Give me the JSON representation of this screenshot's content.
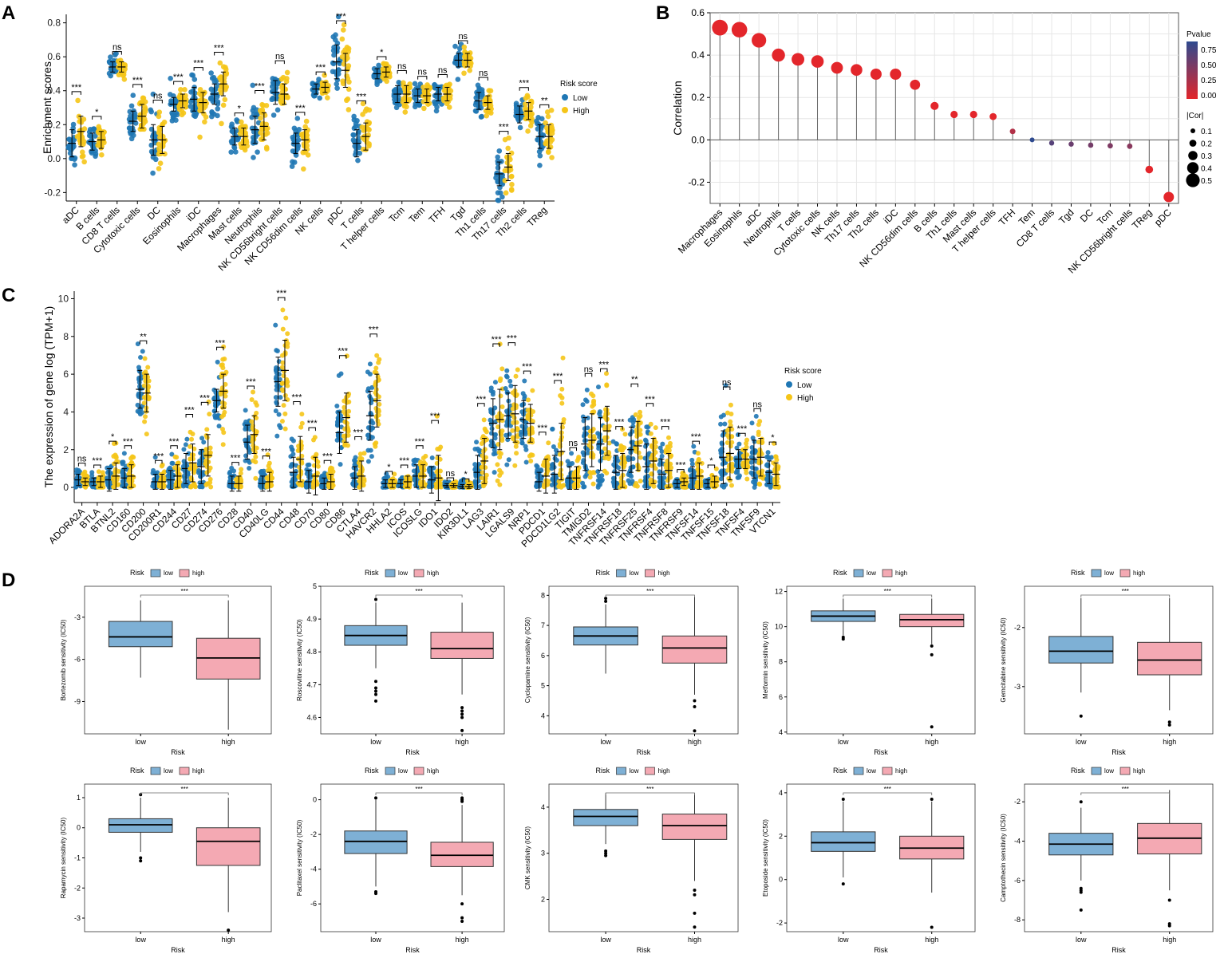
{
  "colors": {
    "low": "#1F77B4",
    "high": "#F5C518",
    "box_low": "#7EB0D5",
    "box_high": "#F4A9B3",
    "grid": "#E6E6E6",
    "corr_high": "#E3262B",
    "corr_low": "#2E4A8F"
  },
  "chart_data": [
    {
      "panel": "A",
      "type": "scatter",
      "title": "",
      "ylabel": "Enrichment scores",
      "ylim": [
        -0.25,
        0.85
      ],
      "yticks": [
        -0.2,
        0.0,
        0.2,
        0.4,
        0.6,
        0.8
      ],
      "legend": {
        "title": "Risk score",
        "labels": [
          "Low",
          "High"
        ],
        "placement": "right"
      },
      "categories": [
        "aDC",
        "B cells",
        "CD8 T cells",
        "Cytotoxic cells",
        "DC",
        "Eosinophils",
        "iDC",
        "Macrophages",
        "Mast cells",
        "Neutrophils",
        "NK CD56bright cells",
        "NK CD56dim cells",
        "NK cells",
        "pDC",
        "T cells",
        "T helper cells",
        "Tcm",
        "Tem",
        "TFH",
        "Tgd",
        "Th1 cells",
        "Th17 cells",
        "Th2 cells",
        "TReg"
      ],
      "series": [
        {
          "name": "Low",
          "mean": [
            0.09,
            0.1,
            0.54,
            0.22,
            0.11,
            0.32,
            0.35,
            0.38,
            0.13,
            0.17,
            0.39,
            0.09,
            0.41,
            0.57,
            0.09,
            0.5,
            0.38,
            0.37,
            0.38,
            0.58,
            0.34,
            -0.09,
            0.26,
            0.13
          ],
          "sd": [
            0.08,
            0.05,
            0.03,
            0.06,
            0.09,
            0.04,
            0.07,
            0.06,
            0.05,
            0.08,
            0.07,
            0.06,
            0.03,
            0.1,
            0.08,
            0.03,
            0.05,
            0.04,
            0.04,
            0.04,
            0.05,
            0.07,
            0.05,
            0.07
          ]
        },
        {
          "name": "High",
          "mean": [
            0.16,
            0.11,
            0.54,
            0.25,
            0.11,
            0.34,
            0.33,
            0.44,
            0.13,
            0.19,
            0.38,
            0.11,
            0.42,
            0.52,
            0.13,
            0.51,
            0.38,
            0.37,
            0.38,
            0.58,
            0.33,
            -0.05,
            0.28,
            0.13
          ],
          "sd": [
            0.09,
            0.05,
            0.03,
            0.07,
            0.08,
            0.04,
            0.06,
            0.07,
            0.05,
            0.08,
            0.06,
            0.06,
            0.03,
            0.1,
            0.08,
            0.03,
            0.05,
            0.04,
            0.04,
            0.04,
            0.04,
            0.08,
            0.05,
            0.07
          ]
        }
      ],
      "significance": [
        "***",
        "*",
        "ns",
        "***",
        "ns",
        "***",
        "***",
        "***",
        "*",
        "***",
        "ns",
        "***",
        "***",
        "***",
        "***",
        "*",
        "ns",
        "ns",
        "ns",
        "ns",
        "ns",
        "***",
        "***",
        "**"
      ]
    },
    {
      "panel": "B",
      "type": "scatter",
      "title": "",
      "ylabel": "Correlation",
      "ylim": [
        -0.3,
        0.6
      ],
      "yticks": [
        -0.2,
        0.0,
        0.2,
        0.4,
        0.6
      ],
      "x": [
        "Macrophages",
        "Eosinophils",
        "aDC",
        "Neutrophils",
        "T cells",
        "Cytotoxic cells",
        "NK cells",
        "Th17 cells",
        "Th2 cells",
        "iDC",
        "NK CD56dim cells",
        "B cells",
        "Th1 cells",
        "Mast cells",
        "T helper cells",
        "TFH",
        "Tem",
        "CD8 T cells",
        "Tgd",
        "DC",
        "Tcm",
        "NK CD56bright cells",
        "TReg",
        "pDC"
      ],
      "y": [
        0.53,
        0.52,
        0.47,
        0.4,
        0.38,
        0.37,
        0.34,
        0.33,
        0.31,
        0.31,
        0.26,
        0.16,
        0.12,
        0.12,
        0.11,
        0.04,
        0.0,
        -0.015,
        -0.02,
        -0.025,
        -0.028,
        -0.03,
        -0.14,
        -0.27
      ],
      "pvalue": [
        0.0,
        0.0,
        0.0,
        0.0,
        0.0,
        0.0,
        0.0,
        0.0,
        0.0,
        0.0,
        0.0,
        0.0,
        0.001,
        0.001,
        0.002,
        0.25,
        0.95,
        0.7,
        0.6,
        0.55,
        0.5,
        0.45,
        0.0,
        0.0
      ],
      "legend_pvalue": {
        "title": "Pvalue",
        "ticks": [
          "0.75",
          "0.50",
          "0.25",
          "0.00"
        ]
      },
      "legend_size": {
        "title": "|Cor|",
        "ticks": [
          "0.1",
          "0.2",
          "0.3",
          "0.4",
          "0.5"
        ]
      }
    },
    {
      "panel": "C",
      "type": "scatter",
      "title": "",
      "ylabel": "The expression of gene log (TPM+1)",
      "ylim": [
        -0.8,
        10.4
      ],
      "yticks": [
        0,
        2,
        4,
        6,
        8,
        10
      ],
      "legend": {
        "title": "Risk score",
        "labels": [
          "Low",
          "High"
        ],
        "placement": "right"
      },
      "categories": [
        "ADORA2A",
        "BTLA",
        "BTNL2",
        "CD160",
        "CD200",
        "CD200R1",
        "CD244",
        "CD27",
        "CD274",
        "CD276",
        "CD28",
        "CD40",
        "CD40LG",
        "CD44",
        "CD48",
        "CD70",
        "CD80",
        "CD86",
        "CTLA4",
        "HAVCR2",
        "HHLA2",
        "ICOS",
        "ICOSLG",
        "IDO1",
        "IDO2",
        "KIR3DL1",
        "LAG3",
        "LAIR1",
        "LGALS9",
        "NRP1",
        "PDCD1",
        "PDCD1LG2",
        "TIGIT",
        "TMIGD2",
        "TNFRSF14",
        "TNFRSF18",
        "TNFRSF25",
        "TNFRSF4",
        "TNFRSF8",
        "TNFRSF9",
        "TNFSF14",
        "TNFSF15",
        "TNFSF18",
        "TNFSF4",
        "TNFSF9",
        "VTCN1"
      ],
      "series": [
        {
          "name": "Low",
          "mean": [
            0.4,
            0.3,
            0.4,
            0.5,
            5.2,
            0.3,
            0.4,
            1.0,
            1.1,
            4.6,
            0.2,
            2.4,
            0.2,
            5.6,
            0.8,
            0.3,
            0.2,
            2.9,
            0.5,
            3.8,
            0.2,
            0.2,
            0.6,
            0.4,
            0.1,
            0.05,
            0.8,
            3.4,
            3.8,
            3.6,
            0.3,
            0.7,
            0.5,
            2.3,
            2.3,
            0.8,
            2.0,
            1.1,
            0.7,
            0.2,
            0.5,
            0.2,
            1.6,
            1.5,
            1.5,
            0.8
          ],
          "sd": [
            0.3,
            0.2,
            0.6,
            0.5,
            1.0,
            0.4,
            0.5,
            0.8,
            0.9,
            0.6,
            0.4,
            0.9,
            0.4,
            1.3,
            0.8,
            0.6,
            0.3,
            1.1,
            0.6,
            1.3,
            0.2,
            0.2,
            0.6,
            0.7,
            0.1,
            0.1,
            0.9,
            1.3,
            1.2,
            1.0,
            0.5,
            1.0,
            0.6,
            1.4,
            1.4,
            0.9,
            1.2,
            1.2,
            0.8,
            0.2,
            0.6,
            0.2,
            1.4,
            0.5,
            1.0,
            0.6
          ]
        },
        {
          "name": "High",
          "mean": [
            0.3,
            0.3,
            0.6,
            0.6,
            5.0,
            0.3,
            0.6,
            1.3,
            1.7,
            5.1,
            0.2,
            2.8,
            0.3,
            6.2,
            1.5,
            0.6,
            0.3,
            3.7,
            0.6,
            4.6,
            0.2,
            0.3,
            0.6,
            0.5,
            0.1,
            0.05,
            1.4,
            3.6,
            3.9,
            3.4,
            0.6,
            1.9,
            0.5,
            2.5,
            3.0,
            0.9,
            2.2,
            1.4,
            0.9,
            0.3,
            0.6,
            0.3,
            1.8,
            1.5,
            1.6,
            0.7
          ],
          "sd": [
            0.2,
            0.3,
            0.7,
            0.6,
            1.0,
            0.4,
            0.6,
            1.0,
            1.1,
            0.9,
            0.4,
            1.0,
            0.5,
            1.6,
            1.2,
            1.0,
            0.4,
            1.3,
            0.8,
            1.4,
            0.2,
            0.3,
            0.6,
            1.2,
            0.1,
            0.1,
            1.2,
            1.6,
            1.5,
            1.0,
            0.9,
            1.5,
            0.6,
            1.4,
            1.3,
            0.9,
            1.3,
            1.2,
            0.9,
            0.2,
            0.7,
            0.3,
            1.4,
            0.5,
            1.0,
            0.6
          ]
        }
      ],
      "significance": [
        "ns",
        "***",
        "*",
        "***",
        "**",
        "***",
        "***",
        "***",
        "***",
        "***",
        "***",
        "***",
        "***",
        "***",
        "***",
        "***",
        "***",
        "***",
        "***",
        "***",
        "*",
        "***",
        "***",
        "***",
        "ns",
        "*",
        "***",
        "***",
        "***",
        "***",
        "***",
        "***",
        "ns",
        "ns",
        "***",
        "***",
        "**",
        "***",
        "***",
        "***",
        "***",
        "*",
        "ns",
        "***",
        "ns",
        "*"
      ]
    },
    {
      "panel": "D",
      "type": "box",
      "xlabel": "Risk",
      "legend": {
        "title": "Risk",
        "labels": [
          "low",
          "high"
        ]
      },
      "categories": [
        "low",
        "high"
      ],
      "significance": "***",
      "plots": [
        {
          "ylabel": "Bortezomib sensitivity (IC50)",
          "ylim": [
            -11.3,
            -0.8
          ],
          "yticks": [
            -9,
            -6,
            -3
          ],
          "low": {
            "min": -7.3,
            "q1": -5.1,
            "median": -4.4,
            "q3": -3.3,
            "max": -1.8,
            "outliers": []
          },
          "high": {
            "min": -11.0,
            "q1": -7.4,
            "median": -5.9,
            "q3": -4.5,
            "max": -1.8,
            "outliers": []
          }
        },
        {
          "ylabel": "Roscovitine sensitivity (IC50)",
          "ylim": [
            4.55,
            5.0
          ],
          "yticks": [
            4.6,
            4.7,
            4.8,
            4.9,
            5.0
          ],
          "low": {
            "min": 4.75,
            "q1": 4.82,
            "median": 4.85,
            "q3": 4.88,
            "max": 4.95,
            "outliers": [
              4.96,
              4.71,
              4.69,
              4.68,
              4.67,
              4.65
            ]
          },
          "high": {
            "min": 4.67,
            "q1": 4.78,
            "median": 4.81,
            "q3": 4.86,
            "max": 4.95,
            "outliers": [
              4.63,
              4.62,
              4.61,
              4.6,
              4.56
            ]
          }
        },
        {
          "ylabel": "Cyclopamine sensitivity (IC50)",
          "ylim": [
            3.4,
            8.3
          ],
          "yticks": [
            4,
            5,
            6,
            7,
            8
          ],
          "low": {
            "min": 5.4,
            "q1": 6.35,
            "median": 6.65,
            "q3": 6.95,
            "max": 7.7,
            "outliers": [
              7.9,
              7.8
            ]
          },
          "high": {
            "min": 4.7,
            "q1": 5.75,
            "median": 6.25,
            "q3": 6.65,
            "max": 7.95,
            "outliers": [
              4.5,
              4.3,
              3.5
            ]
          }
        },
        {
          "ylabel": "Metformin sensitivity (IC50)",
          "ylim": [
            3.9,
            12.3
          ],
          "yticks": [
            4,
            6,
            8,
            10,
            12
          ],
          "low": {
            "min": 9.5,
            "q1": 10.3,
            "median": 10.6,
            "q3": 10.9,
            "max": 11.6,
            "outliers": [
              9.3,
              9.4
            ]
          },
          "high": {
            "min": 9.0,
            "q1": 10.0,
            "median": 10.4,
            "q3": 10.7,
            "max": 11.6,
            "outliers": [
              8.9,
              8.4,
              4.3
            ]
          }
        },
        {
          "ylabel": "Gemcitabine sensitivity (IC50)",
          "ylim": [
            -3.8,
            -1.3
          ],
          "yticks": [
            -3,
            -2
          ],
          "low": {
            "min": -3.1,
            "q1": -2.6,
            "median": -2.4,
            "q3": -2.15,
            "max": -1.5,
            "outliers": [
              -3.5
            ]
          },
          "high": {
            "min": -3.4,
            "q1": -2.8,
            "median": -2.55,
            "q3": -2.25,
            "max": -1.5,
            "outliers": [
              -3.6,
              -3.65
            ]
          }
        },
        {
          "ylabel": "Rapamycin sensitivity (IC50)",
          "ylim": [
            -3.45,
            1.45
          ],
          "yticks": [
            -3,
            -2,
            -1,
            0,
            1
          ],
          "low": {
            "min": -0.8,
            "q1": -0.15,
            "median": 0.1,
            "q3": 0.3,
            "max": 1.0,
            "outliers": [
              1.1,
              -1.0,
              -1.1
            ]
          },
          "high": {
            "min": -2.8,
            "q1": -1.25,
            "median": -0.45,
            "q3": 0.0,
            "max": 1.0,
            "outliers": [
              -3.4
            ]
          }
        },
        {
          "ylabel": "Paclitaxel sensitivity (IC50)",
          "ylim": [
            -7.6,
            0.9
          ],
          "yticks": [
            -6,
            -4,
            -2,
            0
          ],
          "low": {
            "min": -5.0,
            "q1": -3.1,
            "median": -2.4,
            "q3": -1.8,
            "max": 0.0,
            "outliers": [
              0.1,
              -5.3,
              -5.4
            ]
          },
          "high": {
            "min": -5.5,
            "q1": -3.85,
            "median": -3.2,
            "q3": -2.45,
            "max": -0.3,
            "outliers": [
              0.1,
              0.0,
              -0.1,
              -6.0,
              -6.8,
              -7.0
            ]
          }
        },
        {
          "ylabel": "CMK sensitivity (IC50)",
          "ylim": [
            1.3,
            4.5
          ],
          "yticks": [
            2,
            3,
            4
          ],
          "low": {
            "min": 3.2,
            "q1": 3.6,
            "median": 3.8,
            "q3": 3.95,
            "max": 4.3,
            "outliers": [
              3.05,
              3.0,
              2.95
            ]
          },
          "high": {
            "min": 2.4,
            "q1": 3.3,
            "median": 3.6,
            "q3": 3.85,
            "max": 4.3,
            "outliers": [
              2.2,
              2.1,
              1.7,
              1.4
            ]
          }
        },
        {
          "ylabel": "Etoposide sensitivity (IC50)",
          "ylim": [
            -2.4,
            4.4
          ],
          "yticks": [
            -2,
            0,
            2,
            4
          ],
          "low": {
            "min": 0.1,
            "q1": 1.3,
            "median": 1.7,
            "q3": 2.2,
            "max": 3.6,
            "outliers": [
              3.7,
              -0.2
            ]
          },
          "high": {
            "min": -0.6,
            "q1": 0.95,
            "median": 1.45,
            "q3": 2.0,
            "max": 3.6,
            "outliers": [
              3.7,
              -2.2
            ]
          }
        },
        {
          "ylabel": "Camptothecin sensitivity (IC50)",
          "ylim": [
            -8.6,
            -1.1
          ],
          "yticks": [
            -8,
            -6,
            -4,
            -2
          ],
          "low": {
            "min": -6.0,
            "q1": -4.7,
            "median": -4.15,
            "q3": -3.6,
            "max": -2.3,
            "outliers": [
              -2.0,
              -6.4,
              -6.5,
              -6.6,
              -7.5
            ]
          },
          "high": {
            "min": -6.5,
            "q1": -4.65,
            "median": -3.85,
            "q3": -3.1,
            "max": -1.4,
            "outliers": [
              -7.0,
              -8.2,
              -8.3
            ]
          }
        }
      ]
    }
  ],
  "panel_labels": [
    "A",
    "B",
    "C",
    "D"
  ]
}
